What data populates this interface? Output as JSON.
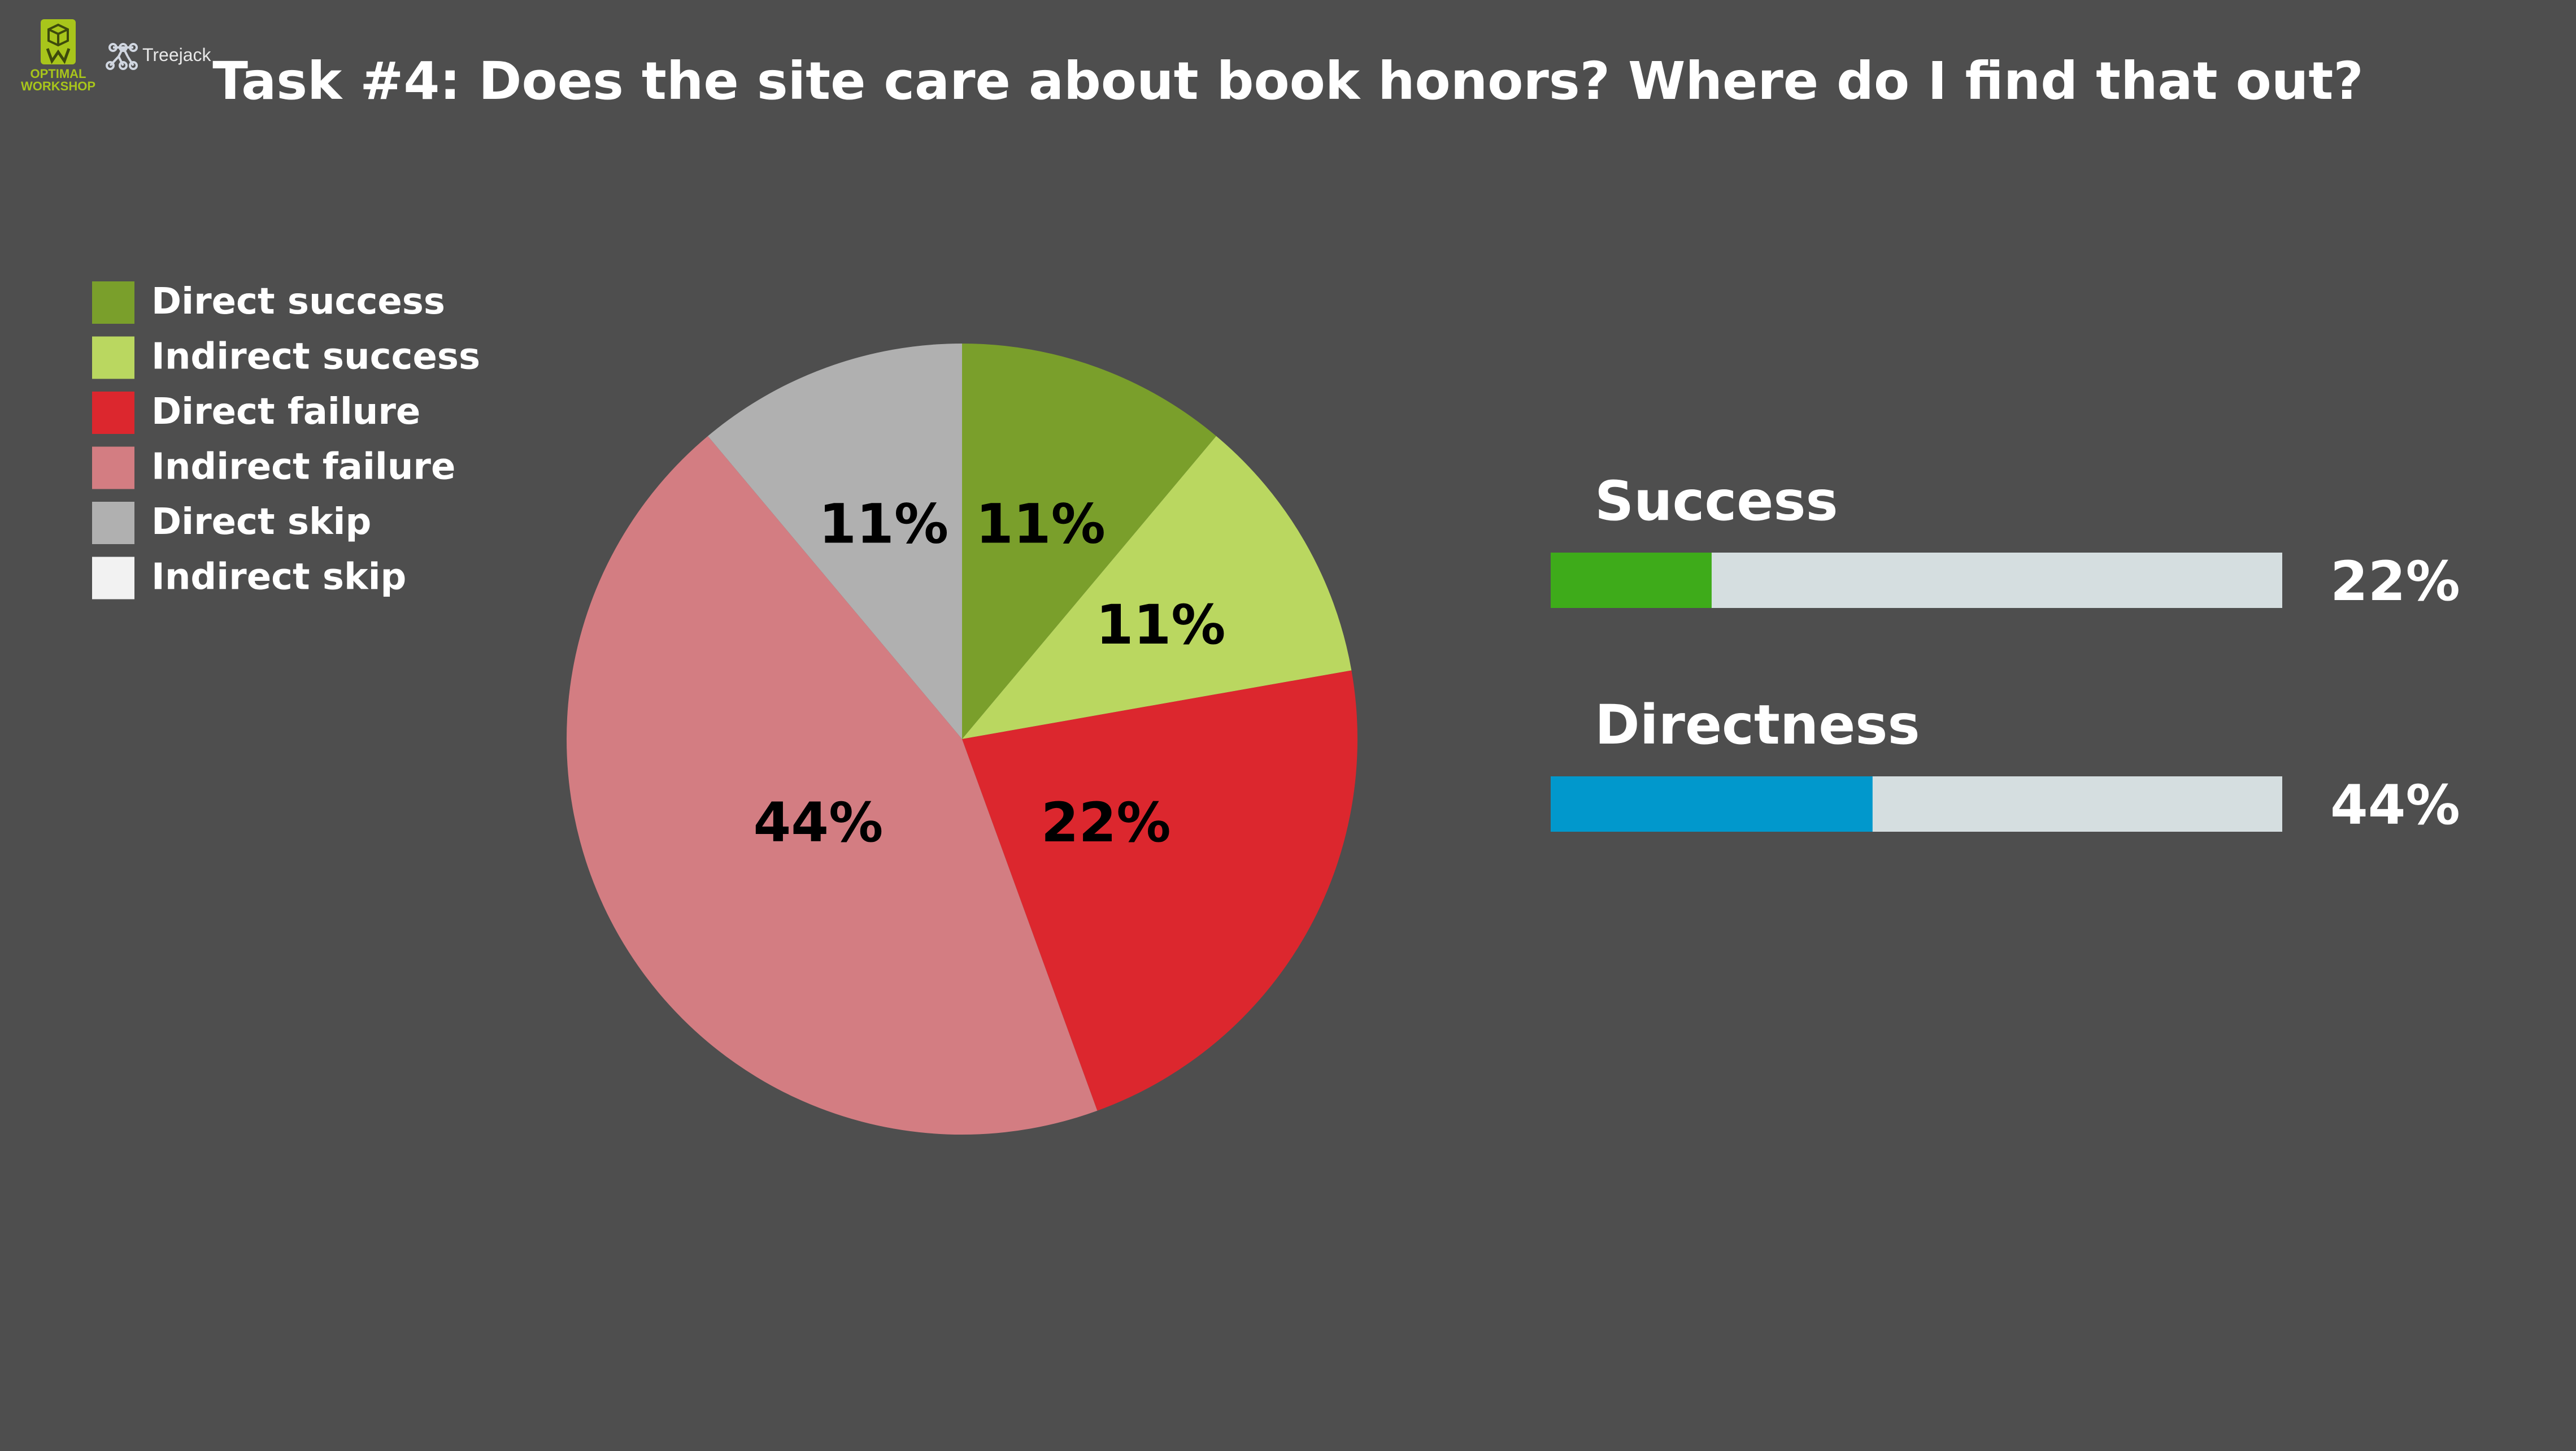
{
  "branding": {
    "logo_line1": "OPTIMAL",
    "logo_line2": "WORKSHOP",
    "product_name": "Treejack",
    "logo_icon": "optimal-workshop-logo-icon",
    "product_icon": "treejack-network-icon"
  },
  "title": "Task #4: Does the site care about book honors? Where do I find that out?",
  "colors": {
    "background": "#4e4e4e",
    "direct_success": "#7a9f2b",
    "indirect_success": "#bad760",
    "direct_failure": "#dc272e",
    "indirect_failure": "#d37d82",
    "direct_skip": "#b0b0b0",
    "indirect_skip": "#f2f2f2",
    "success_fill": "#3eab1a",
    "directness_fill": "#0198cc",
    "bar_track": "#d5dee0",
    "logo_green": "#a8c51b"
  },
  "chart_data": [
    {
      "type": "pie",
      "categories": [
        "Direct success",
        "Indirect success",
        "Direct failure",
        "Indirect failure",
        "Direct skip",
        "Indirect skip"
      ],
      "values": [
        11,
        11,
        22,
        44,
        11,
        0
      ],
      "data_labels": [
        "11%",
        "11%",
        "22%",
        "44%",
        "11%",
        ""
      ],
      "legend_position": "top-left",
      "start_angle": "12 o'clock",
      "direction": "clockwise"
    },
    {
      "type": "bar",
      "orientation": "horizontal",
      "categories": [
        "Success",
        "Directness"
      ],
      "values": [
        22,
        44
      ],
      "value_labels": [
        "22%",
        "44%"
      ],
      "xlim": [
        0,
        100
      ]
    }
  ]
}
